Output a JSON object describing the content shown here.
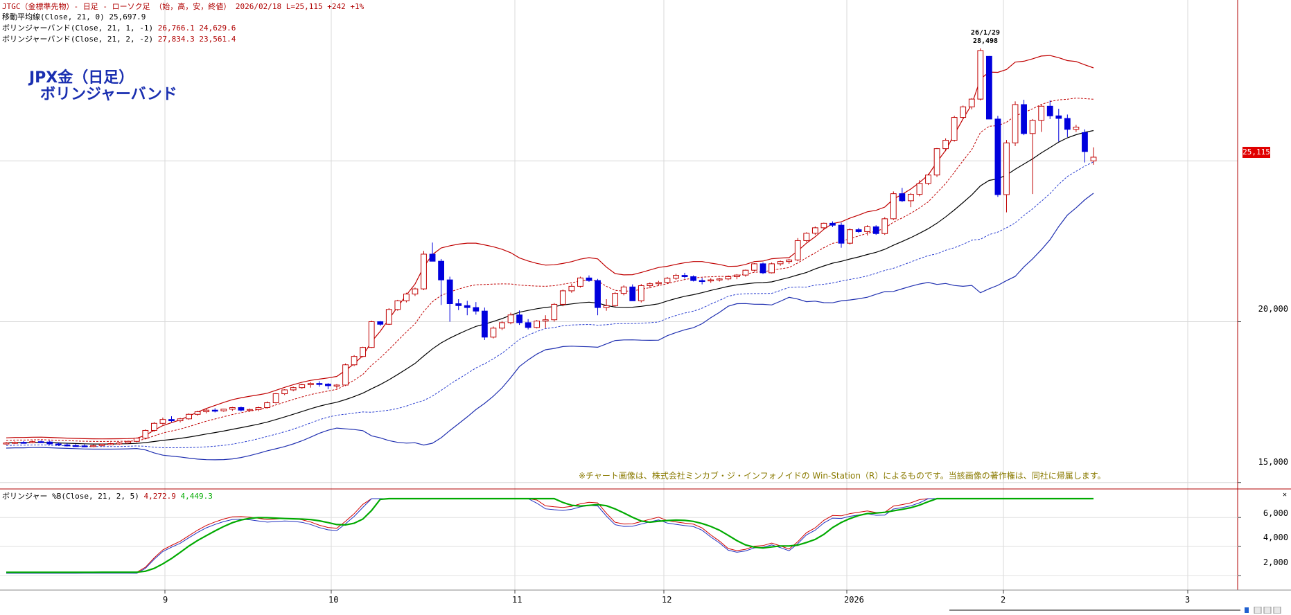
{
  "header": {
    "line1": {
      "label": "JTGC（金標準先物）- 日足 - ローソク足 （始，高，安，終値） 2026/02/18 L=25,115 +242  +1%"
    },
    "line2": {
      "label": "移動平均線(Close, 21, 0)",
      "value": "25,697.9"
    },
    "line3": {
      "label": "ボリンジャーバンド(Close, 21, 1, -1)",
      "value": "26,766.1 24,629.6"
    },
    "line4": {
      "label": "ボリンジャーバンド(Close, 21, 2, -2)",
      "value": "27,834.3 23,561.4"
    }
  },
  "title": {
    "line1": "JPX金（日足）",
    "line2": "ボリンジャーバンド"
  },
  "annotation": {
    "date": "26/1/29",
    "value": "28,498"
  },
  "notice": "※チャート画像は、株式会社ミンカブ・ジ・インフォノイドの Win-Station（R）によるものです。当該画像の著作権は、同社に帰属します。",
  "indicator_header": {
    "label": "ボリンジャー %B(Close, 21, 2, 5)",
    "v1": "4,272.9",
    "v2": "4,449.3"
  },
  "price_box": "25,115",
  "y_axis_main": [
    "20,000",
    "15,000"
  ],
  "y_axis_sub": [
    "6,000",
    "4,000",
    "2,000"
  ],
  "x_axis": [
    "9",
    "10",
    "11",
    "12",
    "2026",
    "2",
    "3"
  ],
  "colors": {
    "bull": "#c00000",
    "bear": "#0000dd",
    "ma": "#000000",
    "band2": "#1f2fb0",
    "band1_lower": "#2a3fd0",
    "band_upper": "#c00000",
    "osc_red": "#d00000",
    "osc_green": "#00aa00",
    "osc_blue": "#2030c0"
  },
  "chart_data": {
    "type": "candlestick",
    "title": "JPX金（日足）ボリンジャーバンド",
    "ylim": [
      14800,
      29700
    ],
    "y_ticks": [
      15000,
      20000
    ],
    "series_ma21_end": 25697.9,
    "band_pm1_end": [
      26766.1,
      24629.6
    ],
    "band_pm2_end": [
      27834.3,
      23561.4
    ],
    "last_close": 25115,
    "peak": {
      "date": "26/1/29",
      "high": 28498
    },
    "ohlc_approx": [
      [
        16220,
        16260,
        16180,
        16230
      ],
      [
        16230,
        16280,
        16200,
        16250
      ],
      [
        16250,
        16290,
        16210,
        16240
      ],
      [
        16240,
        16300,
        16220,
        16270
      ],
      [
        16270,
        16310,
        16230,
        16260
      ],
      [
        16260,
        16300,
        16180,
        16200
      ],
      [
        16200,
        16250,
        16140,
        16170
      ],
      [
        16170,
        16220,
        16120,
        16150
      ],
      [
        16150,
        16200,
        16110,
        16140
      ],
      [
        16140,
        16190,
        16100,
        16120
      ],
      [
        16120,
        16180,
        16100,
        16150
      ],
      [
        16150,
        16210,
        16120,
        16190
      ],
      [
        16190,
        16240,
        16160,
        16210
      ],
      [
        16210,
        16260,
        16170,
        16230
      ],
      [
        16230,
        16300,
        16200,
        16280
      ],
      [
        16280,
        16400,
        16250,
        16380
      ],
      [
        16380,
        16650,
        16350,
        16620
      ],
      [
        16620,
        16880,
        16580,
        16840
      ],
      [
        16840,
        17020,
        16800,
        16960
      ],
      [
        16960,
        17060,
        16880,
        16920
      ],
      [
        16920,
        17010,
        16870,
        16980
      ],
      [
        16980,
        17150,
        16950,
        17120
      ],
      [
        17120,
        17230,
        17080,
        17200
      ],
      [
        17200,
        17290,
        17150,
        17250
      ],
      [
        17250,
        17310,
        17180,
        17230
      ],
      [
        17230,
        17290,
        17200,
        17280
      ],
      [
        17280,
        17350,
        17230,
        17330
      ],
      [
        17330,
        17360,
        17210,
        17250
      ],
      [
        17250,
        17300,
        17200,
        17270
      ],
      [
        17270,
        17360,
        17220,
        17330
      ],
      [
        17330,
        17520,
        17300,
        17480
      ],
      [
        17480,
        17780,
        17460,
        17760
      ],
      [
        17760,
        17900,
        17720,
        17880
      ],
      [
        17880,
        17980,
        17840,
        17950
      ],
      [
        17950,
        18070,
        17910,
        18040
      ],
      [
        18040,
        18120,
        17950,
        18080
      ],
      [
        18080,
        18150,
        17980,
        18060
      ],
      [
        18060,
        18090,
        17900,
        18010
      ],
      [
        18010,
        18060,
        17920,
        18030
      ],
      [
        18030,
        18700,
        18000,
        18660
      ],
      [
        18660,
        18960,
        18620,
        18920
      ],
      [
        18920,
        19220,
        18890,
        19200
      ],
      [
        19200,
        20030,
        19180,
        20000
      ],
      [
        20000,
        20020,
        19870,
        19920
      ],
      [
        19920,
        20420,
        19900,
        20380
      ],
      [
        20380,
        20680,
        20340,
        20650
      ],
      [
        20650,
        20900,
        20600,
        20860
      ],
      [
        20860,
        21060,
        20800,
        21020
      ],
      [
        21020,
        22200,
        20980,
        22100
      ],
      [
        22100,
        22460,
        21980,
        21880
      ],
      [
        21880,
        21950,
        20520,
        21300
      ],
      [
        21300,
        21400,
        20000,
        20560
      ],
      [
        20560,
        20700,
        20360,
        20500
      ],
      [
        20500,
        20650,
        20200,
        20440
      ],
      [
        20440,
        20610,
        20220,
        20330
      ],
      [
        20330,
        20440,
        19430,
        19520
      ],
      [
        19520,
        19850,
        19480,
        19800
      ],
      [
        19800,
        20020,
        19740,
        19970
      ],
      [
        19970,
        20280,
        19920,
        20210
      ],
      [
        20210,
        20350,
        19900,
        19970
      ],
      [
        19970,
        20080,
        19760,
        19820
      ],
      [
        19820,
        20050,
        19790,
        20020
      ],
      [
        20020,
        20200,
        19800,
        20060
      ],
      [
        20060,
        20580,
        20000,
        20540
      ],
      [
        20540,
        21000,
        20480,
        20960
      ],
      [
        20960,
        21180,
        20900,
        21100
      ],
      [
        21100,
        21400,
        21060,
        21360
      ],
      [
        21360,
        21440,
        21240,
        21280
      ],
      [
        21280,
        21330,
        20200,
        20440
      ],
      [
        20440,
        20700,
        20340,
        20500
      ],
      [
        20500,
        20920,
        20460,
        20880
      ],
      [
        20880,
        21130,
        20820,
        21080
      ],
      [
        21080,
        21160,
        20650,
        20650
      ],
      [
        20650,
        21170,
        20600,
        21120
      ],
      [
        21120,
        21220,
        21040,
        21180
      ],
      [
        21180,
        21270,
        21120,
        21220
      ],
      [
        21220,
        21390,
        21180,
        21350
      ],
      [
        21350,
        21490,
        21300,
        21440
      ],
      [
        21440,
        21520,
        21340,
        21400
      ],
      [
        21400,
        21440,
        21250,
        21280
      ],
      [
        21280,
        21360,
        21160,
        21270
      ],
      [
        21270,
        21350,
        21210,
        21300
      ],
      [
        21300,
        21360,
        21250,
        21330
      ],
      [
        21330,
        21440,
        21290,
        21400
      ],
      [
        21400,
        21480,
        21320,
        21450
      ],
      [
        21450,
        21620,
        21400,
        21600
      ],
      [
        21600,
        21820,
        21560,
        21800
      ],
      [
        21800,
        21840,
        21480,
        21520
      ],
      [
        21520,
        21840,
        21500,
        21800
      ],
      [
        21800,
        21900,
        21740,
        21870
      ],
      [
        21870,
        21950,
        21800,
        21920
      ],
      [
        21920,
        22600,
        21880,
        22520
      ],
      [
        22520,
        22780,
        22480,
        22750
      ],
      [
        22750,
        22960,
        22700,
        22920
      ],
      [
        22920,
        23080,
        22880,
        23060
      ],
      [
        23060,
        23120,
        22940,
        23000
      ],
      [
        23000,
        23080,
        22300,
        22440
      ],
      [
        22440,
        22900,
        22400,
        22860
      ],
      [
        22860,
        22920,
        22760,
        22800
      ],
      [
        22800,
        23000,
        22680,
        22950
      ],
      [
        22950,
        23000,
        22700,
        22740
      ],
      [
        22740,
        23250,
        22700,
        23200
      ],
      [
        23200,
        24050,
        23160,
        23980
      ],
      [
        23980,
        24160,
        23720,
        23760
      ],
      [
        23760,
        24000,
        23560,
        23960
      ],
      [
        23960,
        24400,
        23900,
        24300
      ],
      [
        24300,
        24600,
        24250,
        24560
      ],
      [
        24560,
        25400,
        24500,
        25380
      ],
      [
        25380,
        25700,
        25300,
        25640
      ],
      [
        25640,
        26400,
        25600,
        26350
      ],
      [
        26350,
        26720,
        26300,
        26680
      ],
      [
        26680,
        26950,
        26600,
        26920
      ],
      [
        26920,
        28498,
        26880,
        28430
      ],
      [
        28250,
        28260,
        26320,
        26300
      ],
      [
        26300,
        26400,
        23880,
        23950
      ],
      [
        23950,
        25650,
        23400,
        25560
      ],
      [
        25560,
        26850,
        25460,
        26750
      ],
      [
        26750,
        26900,
        25800,
        25850
      ],
      [
        25850,
        26300,
        23970,
        26260
      ],
      [
        26260,
        26750,
        25900,
        26700
      ],
      [
        26700,
        26880,
        26300,
        26400
      ],
      [
        26400,
        26620,
        25600,
        26320
      ],
      [
        26320,
        26440,
        25740,
        25980
      ],
      [
        25980,
        26120,
        25900,
        26050
      ],
      [
        25880,
        25980,
        24950,
        25290
      ],
      [
        25000,
        25420,
        24880,
        25115
      ]
    ],
    "indicator": {
      "name": "ボリンジャー %B(Close, 21, 2, 5)",
      "ylim": [
        1000,
        7300
      ],
      "y_ticks": [
        2000,
        4000,
        6000
      ],
      "last": [
        4272.9,
        4449.3
      ]
    }
  }
}
